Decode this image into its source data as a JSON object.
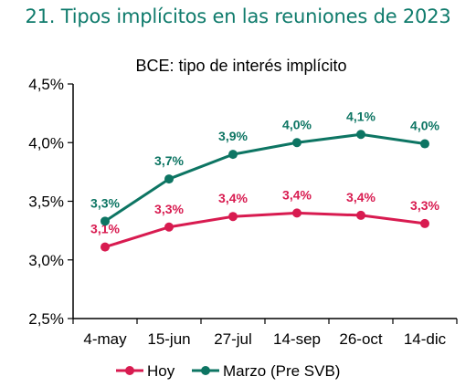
{
  "figure_title": "21.  Tipos implícitos en las reuniones de 2023",
  "colors": {
    "title": "#0f7b6c",
    "hoy": "#d81b50",
    "marzo": "#0d7563",
    "axis": "#000000"
  },
  "chart_data": {
    "type": "line",
    "title": "BCE: tipo de interés implícito",
    "categories": [
      "4-may",
      "15-jun",
      "27-jul",
      "14-sep",
      "26-oct",
      "14-dic"
    ],
    "ylim": [
      2.5,
      4.5
    ],
    "yticks": [
      2.5,
      3.0,
      3.5,
      4.0,
      4.5
    ],
    "ytick_labels": [
      "2,5%",
      "3,0%",
      "3,5%",
      "4,0%",
      "4,5%"
    ],
    "grid": false,
    "legend_position": "bottom",
    "series": [
      {
        "name": "Hoy",
        "color": "#d81b50",
        "values": [
          3.11,
          3.28,
          3.37,
          3.4,
          3.38,
          3.31
        ],
        "labels": [
          "3,1%",
          "3,3%",
          "3,4%",
          "3,4%",
          "3,4%",
          "3,3%"
        ]
      },
      {
        "name": "Marzo (Pre SVB)",
        "color": "#0d7563",
        "values": [
          3.33,
          3.69,
          3.9,
          4.0,
          4.07,
          3.99
        ],
        "labels": [
          "3,3%",
          "3,7%",
          "3,9%",
          "4,0%",
          "4,1%",
          "4,0%"
        ]
      }
    ]
  }
}
